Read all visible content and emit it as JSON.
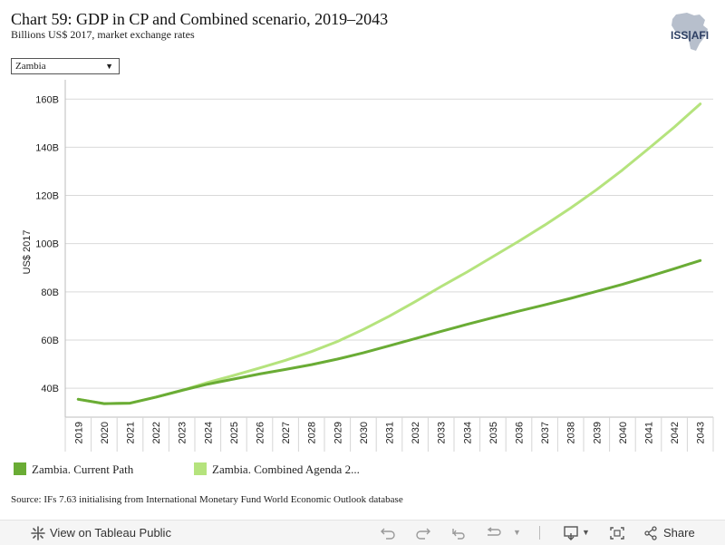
{
  "header": {
    "title": "Chart 59: GDP in CP and Combined scenario, 2019–2043",
    "subtitle": "Billions US$ 2017, market exchange rates",
    "logo_text": "ISS|AFI"
  },
  "filter": {
    "selected": "Zambia"
  },
  "colors": {
    "current_path": "#6aac35",
    "combined": "#b5e37d",
    "grid": "#d9d9d9"
  },
  "chart_data": {
    "type": "line",
    "ylabel": "US$ 2017",
    "ylim": [
      28,
      168
    ],
    "y_ticks": [
      40,
      60,
      80,
      100,
      120,
      140,
      160
    ],
    "y_tick_labels": [
      "40B",
      "60B",
      "80B",
      "100B",
      "120B",
      "140B",
      "160B"
    ],
    "x": [
      "2019",
      "2020",
      "2021",
      "2022",
      "2023",
      "2024",
      "2025",
      "2026",
      "2027",
      "2028",
      "2029",
      "2030",
      "2031",
      "2032",
      "2033",
      "2034",
      "2035",
      "2036",
      "2037",
      "2038",
      "2039",
      "2040",
      "2041",
      "2042",
      "2043"
    ],
    "series": [
      {
        "name": "Zambia. Current Path",
        "color": "#6aac35",
        "values": [
          35.4,
          33.6,
          33.8,
          36.3,
          39.1,
          41.7,
          43.8,
          45.9,
          47.8,
          49.8,
          52.1,
          54.7,
          57.6,
          60.6,
          63.6,
          66.5,
          69.3,
          72.0,
          74.6,
          77.3,
          80.2,
          83.1,
          86.3,
          89.6,
          93.0
        ]
      },
      {
        "name": "Zambia. Combined Agenda 2...",
        "color": "#b5e37d",
        "values": [
          35.4,
          33.6,
          33.8,
          36.3,
          39.1,
          42.4,
          45.3,
          48.4,
          51.6,
          55.2,
          59.4,
          64.4,
          69.9,
          75.9,
          82.2,
          88.2,
          94.6,
          101.0,
          107.7,
          114.8,
          122.4,
          130.6,
          139.4,
          148.4,
          158.0
        ]
      }
    ]
  },
  "legend": {
    "items": [
      {
        "label": "Zambia. Current Path",
        "color": "#6aac35"
      },
      {
        "label": "Zambia. Combined Agenda 2...",
        "color": "#b5e37d"
      }
    ]
  },
  "source": "Source: IFs 7.63 initialising from International Monetary Fund World Economic Outlook database",
  "toolbar": {
    "view_label": "View on Tableau Public",
    "share_label": "Share"
  }
}
